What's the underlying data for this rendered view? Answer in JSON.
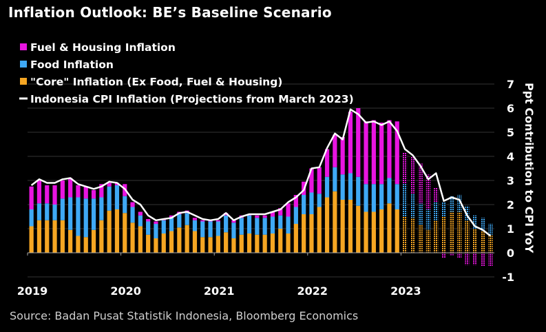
{
  "title": "Inflation Outlook: BE’s Baseline Scenario",
  "source": "Source: Badan Pusat Statistik Indonesia, Bloomberg Economics",
  "chart_data": {
    "type": "bar",
    "stacked": true,
    "ylabel": "Ppt Contribution to CPI YoY",
    "ylim": [
      -1,
      7
    ],
    "yticks": [
      -1,
      0,
      1,
      2,
      3,
      4,
      5,
      6,
      7
    ],
    "y_axis_position": "right",
    "grid": true,
    "legend_position": "top-left",
    "x_tick_labels": [
      "2019",
      "2020",
      "2021",
      "2022",
      "2023"
    ],
    "x_tick_index": [
      0,
      12,
      24,
      36,
      48
    ],
    "projection_start_index": 48,
    "categories": [
      "2019-01",
      "2019-02",
      "2019-03",
      "2019-04",
      "2019-05",
      "2019-06",
      "2019-07",
      "2019-08",
      "2019-09",
      "2019-10",
      "2019-11",
      "2019-12",
      "2020-01",
      "2020-02",
      "2020-03",
      "2020-04",
      "2020-05",
      "2020-06",
      "2020-07",
      "2020-08",
      "2020-09",
      "2020-10",
      "2020-11",
      "2020-12",
      "2021-01",
      "2021-02",
      "2021-03",
      "2021-04",
      "2021-05",
      "2021-06",
      "2021-07",
      "2021-08",
      "2021-09",
      "2021-10",
      "2021-11",
      "2021-12",
      "2022-01",
      "2022-02",
      "2022-03",
      "2022-04",
      "2022-05",
      "2022-06",
      "2022-07",
      "2022-08",
      "2022-09",
      "2022-10",
      "2022-11",
      "2022-12",
      "2023-01",
      "2023-02",
      "2023-03",
      "2023-04",
      "2023-05",
      "2023-06",
      "2023-07",
      "2023-08",
      "2023-09",
      "2023-10",
      "2023-11",
      "2023-12"
    ],
    "series": [
      {
        "name": "\"Core\" Inflation (Ex Food, Fuel & Housing)",
        "color": "#f5a623",
        "values": [
          1.1,
          1.35,
          1.35,
          1.35,
          1.35,
          0.95,
          0.7,
          0.65,
          0.95,
          1.35,
          1.75,
          1.8,
          1.65,
          1.25,
          1.1,
          0.75,
          0.6,
          0.8,
          0.9,
          1.05,
          1.15,
          0.9,
          0.65,
          0.65,
          0.7,
          0.85,
          0.6,
          0.75,
          0.8,
          0.75,
          0.75,
          0.8,
          1.0,
          0.8,
          1.2,
          1.6,
          1.6,
          1.9,
          2.3,
          2.55,
          2.2,
          2.2,
          1.95,
          1.7,
          1.7,
          1.8,
          2.05,
          1.8,
          1.5,
          1.45,
          1.15,
          0.95,
          1.35,
          1.5,
          1.7,
          1.7,
          1.35,
          1.0,
          0.9,
          0.75
        ]
      },
      {
        "name": "Food Inflation",
        "color": "#3fa9f5",
        "values": [
          0.7,
          0.7,
          0.7,
          0.65,
          0.9,
          1.35,
          1.6,
          1.6,
          1.3,
          0.95,
          1.0,
          1.0,
          0.7,
          0.65,
          0.45,
          0.55,
          0.6,
          0.55,
          0.55,
          0.55,
          0.5,
          0.45,
          0.65,
          0.65,
          0.6,
          0.7,
          0.65,
          0.7,
          0.75,
          0.7,
          0.7,
          0.7,
          0.55,
          0.7,
          0.7,
          0.8,
          0.9,
          0.55,
          0.85,
          1.0,
          1.05,
          1.1,
          1.2,
          1.15,
          1.15,
          1.05,
          1.05,
          1.05,
          1.35,
          1.0,
          0.9,
          0.85,
          0.75,
          0.6,
          0.65,
          0.7,
          0.6,
          0.55,
          0.55,
          0.45
        ]
      },
      {
        "name": "Fuel & Housing Inflation",
        "color": "#e815e0",
        "values": [
          0.95,
          0.95,
          0.75,
          0.8,
          0.75,
          0.8,
          0.5,
          0.5,
          0.35,
          0.55,
          0.15,
          0.1,
          0.5,
          0.2,
          0.15,
          0.1,
          0.1,
          0.05,
          0.1,
          0.1,
          0.1,
          0.1,
          0.05,
          0.05,
          0.05,
          0.1,
          0.1,
          0.1,
          0.05,
          0.1,
          0.1,
          0.2,
          0.3,
          0.55,
          0.5,
          0.55,
          1.0,
          1.1,
          1.15,
          1.35,
          1.55,
          2.55,
          2.85,
          2.6,
          2.65,
          2.55,
          2.4,
          2.6,
          1.3,
          1.55,
          1.65,
          1.45,
          0.6,
          -0.2,
          -0.1,
          -0.2,
          -0.5,
          -0.5,
          -0.55,
          -0.55
        ]
      },
      {
        "name": "Indonesia CPI Inflation (Projections from March 2023)",
        "color": "#ffffff",
        "kind": "line",
        "values": [
          2.8,
          3.05,
          2.9,
          2.9,
          3.05,
          3.1,
          2.85,
          2.75,
          2.65,
          2.75,
          2.95,
          2.9,
          2.65,
          2.2,
          2.0,
          1.55,
          1.35,
          1.4,
          1.45,
          1.65,
          1.7,
          1.55,
          1.4,
          1.35,
          1.4,
          1.65,
          1.35,
          1.5,
          1.6,
          1.6,
          1.6,
          1.7,
          1.8,
          2.1,
          2.3,
          2.6,
          3.5,
          3.55,
          4.35,
          4.95,
          4.7,
          5.95,
          5.75,
          5.4,
          5.45,
          5.3,
          5.45,
          5.05,
          4.3,
          4.05,
          3.6,
          3.05,
          3.3,
          2.15,
          2.3,
          2.2,
          1.55,
          1.1,
          0.95,
          0.7
        ]
      }
    ],
    "legend_order": [
      "Fuel & Housing Inflation",
      "Food Inflation",
      "\"Core\" Inflation (Ex Food, Fuel & Housing)",
      "Indonesia CPI Inflation (Projections from March 2023)"
    ]
  }
}
